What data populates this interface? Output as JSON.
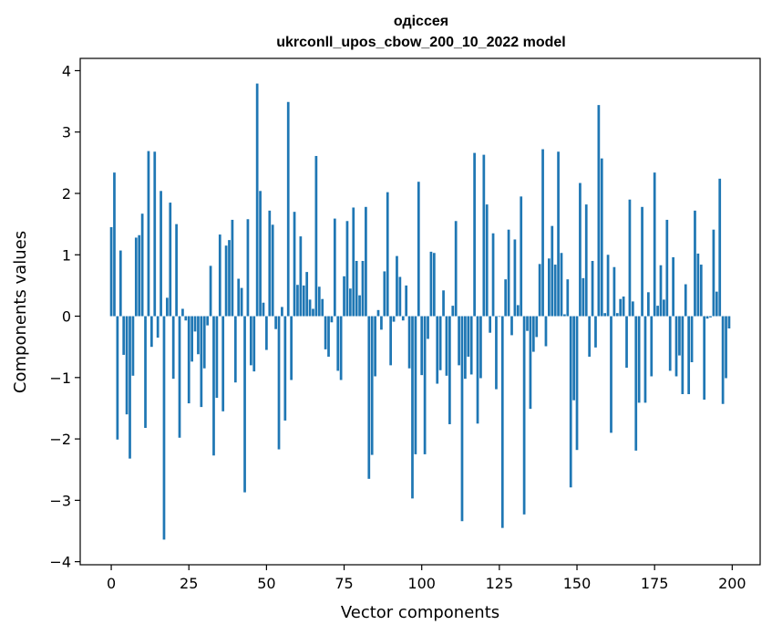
{
  "chart_data": {
    "type": "bar",
    "title": "одіссея",
    "subtitle": "ukrconll_upos_cbow_200_10_2022 model",
    "xlabel": "Vector components",
    "ylabel": "Components values",
    "xlim": [
      -10,
      209
    ],
    "ylim": [
      -4.05,
      4.2
    ],
    "xticks": [
      0,
      25,
      50,
      75,
      100,
      125,
      150,
      175,
      200
    ],
    "xtick_labels": [
      "0",
      "25",
      "50",
      "75",
      "100",
      "125",
      "150",
      "175",
      "200"
    ],
    "yticks": [
      -4,
      -3,
      -2,
      -1,
      0,
      1,
      2,
      3,
      4
    ],
    "ytick_labels": [
      "−4",
      "−3",
      "−2",
      "−1",
      "0",
      "1",
      "2",
      "3",
      "4"
    ],
    "bar_color": "#1f77b4",
    "grid": false,
    "legend": "none",
    "x": [
      0,
      1,
      2,
      3,
      4,
      5,
      6,
      7,
      8,
      9,
      10,
      11,
      12,
      13,
      14,
      15,
      16,
      17,
      18,
      19,
      20,
      21,
      22,
      23,
      24,
      25,
      26,
      27,
      28,
      29,
      30,
      31,
      32,
      33,
      34,
      35,
      36,
      37,
      38,
      39,
      40,
      41,
      42,
      43,
      44,
      45,
      46,
      47,
      48,
      49,
      50,
      51,
      52,
      53,
      54,
      55,
      56,
      57,
      58,
      59,
      60,
      61,
      62,
      63,
      64,
      65,
      66,
      67,
      68,
      69,
      70,
      71,
      72,
      73,
      74,
      75,
      76,
      77,
      78,
      79,
      80,
      81,
      82,
      83,
      84,
      85,
      86,
      87,
      88,
      89,
      90,
      91,
      92,
      93,
      94,
      95,
      96,
      97,
      98,
      99,
      100,
      101,
      102,
      103,
      104,
      105,
      106,
      107,
      108,
      109,
      110,
      111,
      112,
      113,
      114,
      115,
      116,
      117,
      118,
      119,
      120,
      121,
      122,
      123,
      124,
      125,
      126,
      127,
      128,
      129,
      130,
      131,
      132,
      133,
      134,
      135,
      136,
      137,
      138,
      139,
      140,
      141,
      142,
      143,
      144,
      145,
      146,
      147,
      148,
      149,
      150,
      151,
      152,
      153,
      154,
      155,
      156,
      157,
      158,
      159,
      160,
      161,
      162,
      163,
      164,
      165,
      166,
      167,
      168,
      169,
      170,
      171,
      172,
      173,
      174,
      175,
      176,
      177,
      178,
      179,
      180,
      181,
      182,
      183,
      184,
      185,
      186,
      187,
      188,
      189,
      190,
      191,
      192,
      193,
      194,
      195,
      196,
      197,
      198,
      199
    ],
    "values": [
      1.45,
      2.34,
      -2.01,
      1.07,
      -0.63,
      -1.6,
      -2.32,
      -0.97,
      1.28,
      1.32,
      1.67,
      -1.82,
      2.69,
      -0.5,
      2.68,
      -0.35,
      2.04,
      -3.64,
      0.3,
      1.85,
      -1.02,
      1.5,
      -1.98,
      0.12,
      -0.07,
      -1.42,
      -0.74,
      -0.25,
      -0.62,
      -1.48,
      -0.85,
      -0.15,
      0.82,
      -2.27,
      -1.33,
      1.33,
      -1.55,
      1.15,
      1.24,
      1.57,
      -1.08,
      0.61,
      0.46,
      -2.87,
      1.58,
      -0.8,
      -0.9,
      3.79,
      2.04,
      0.22,
      -0.55,
      1.72,
      1.49,
      -0.21,
      -2.17,
      0.15,
      -1.7,
      3.49,
      -1.04,
      1.7,
      0.51,
      1.3,
      0.5,
      0.72,
      0.27,
      0.12,
      2.61,
      0.48,
      0.28,
      -0.54,
      -0.66,
      -0.1,
      1.59,
      -0.89,
      -1.04,
      0.65,
      1.55,
      0.45,
      1.77,
      0.9,
      0.34,
      0.9,
      1.78,
      -2.65,
      -2.26,
      -0.98,
      0.1,
      -0.22,
      0.73,
      2.02,
      -0.8,
      -0.09,
      0.98,
      0.64,
      -0.07,
      0.5,
      -0.85,
      -2.97,
      -2.25,
      2.19,
      -0.96,
      -2.25,
      -0.37,
      1.05,
      1.03,
      -1.1,
      -0.88,
      0.42,
      -0.97,
      -1.76,
      0.17,
      1.55,
      -0.8,
      -3.34,
      -1.02,
      -0.66,
      -0.95,
      2.66,
      -1.75,
      -1.01,
      2.63,
      1.82,
      -0.27,
      1.35,
      -1.19,
      -0.01,
      -3.45,
      0.6,
      1.41,
      -0.31,
      1.25,
      0.18,
      1.95,
      -3.23,
      -0.24,
      -1.51,
      -0.58,
      -0.34,
      0.85,
      2.72,
      -0.49,
      0.94,
      1.47,
      0.84,
      2.68,
      1.03,
      0.03,
      0.6,
      -2.79,
      -1.37,
      -2.18,
      2.17,
      0.62,
      1.82,
      -0.66,
      0.9,
      -0.51,
      3.44,
      2.57,
      0.05,
      1.0,
      -1.9,
      0.8,
      0.05,
      0.28,
      0.32,
      -0.84,
      1.9,
      0.24,
      -2.19,
      -1.41,
      1.78,
      -1.41,
      0.39,
      -0.98,
      2.34,
      0.17,
      0.83,
      0.27,
      1.57,
      -0.89,
      0.96,
      -0.98,
      -0.64,
      -1.27,
      0.52,
      -1.27,
      -0.75,
      1.72,
      1.02,
      0.84,
      -1.36,
      -0.04,
      -0.02,
      1.41,
      0.4,
      2.24,
      -1.43,
      -1.01,
      -0.2
    ]
  }
}
